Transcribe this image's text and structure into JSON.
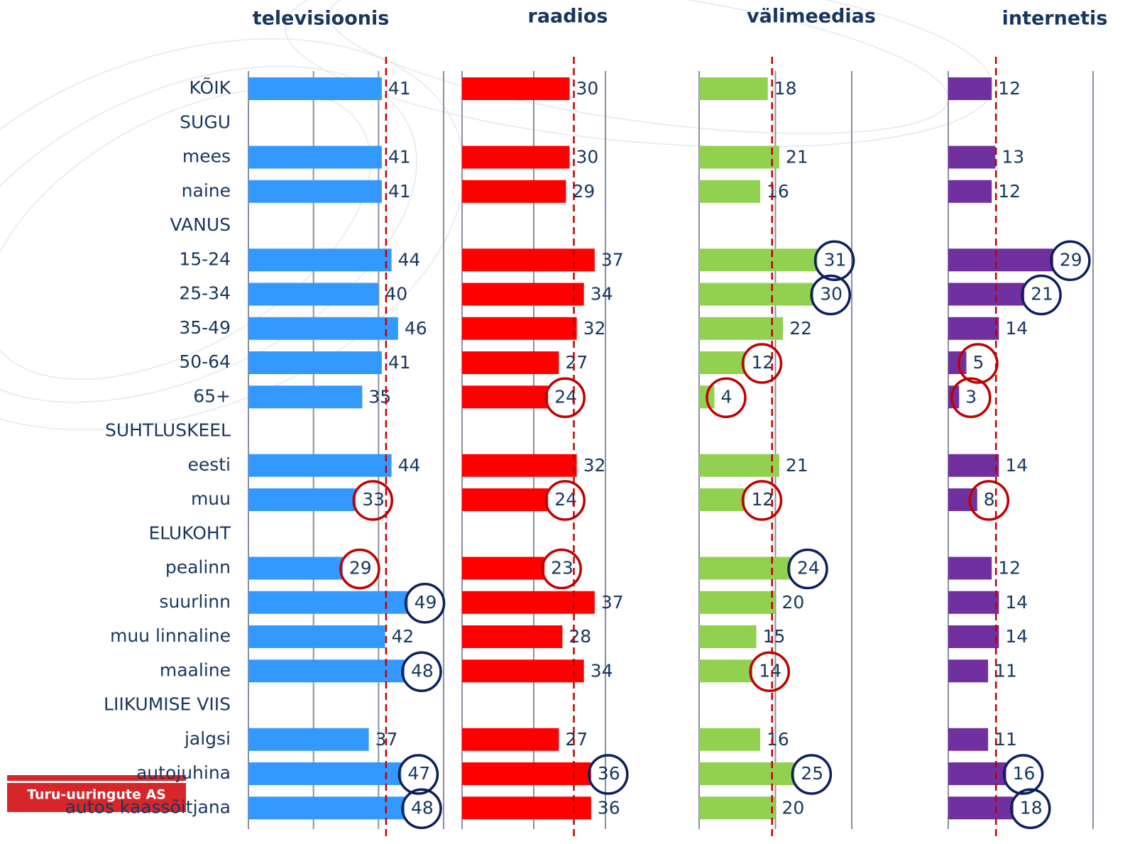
{
  "chart_data": {
    "type": "bar",
    "orientation": "horizontal",
    "categories": [
      "KÕIK",
      "SUGU",
      "mees",
      "naine",
      "VANUS",
      "15-24",
      "25-34",
      "35-49",
      "50-64",
      "65+",
      "SUHTLUSKEEL",
      "eesti",
      "muu",
      "ELUKOHT",
      "pealinn",
      "suurlinn",
      "muu linnaline",
      "maaline",
      "LIIKUMISE VIIS",
      "jalgsi",
      "autojuhina",
      "autos kaassõitjana"
    ],
    "series": [
      {
        "name": "televisioonis",
        "color": "#3399ff",
        "xlim": [
          0,
          60
        ],
        "xticks": [
          0,
          20,
          40,
          60
        ],
        "values": [
          41,
          null,
          41,
          41,
          null,
          44,
          40,
          46,
          41,
          35,
          null,
          44,
          33,
          null,
          29,
          49,
          42,
          48,
          null,
          37,
          47,
          48
        ],
        "highlight": [
          null,
          null,
          null,
          null,
          null,
          null,
          null,
          null,
          null,
          null,
          null,
          null,
          "below",
          null,
          "below",
          "above",
          null,
          "above",
          null,
          null,
          "above",
          "above"
        ]
      },
      {
        "name": "raadios",
        "color": "#ff0000",
        "xlim": [
          0,
          40
        ],
        "xticks": [
          0,
          20,
          40
        ],
        "values": [
          30,
          null,
          30,
          29,
          null,
          37,
          34,
          32,
          27,
          24,
          null,
          32,
          24,
          null,
          23,
          37,
          28,
          34,
          null,
          27,
          36,
          36
        ],
        "highlight": [
          null,
          null,
          null,
          null,
          null,
          null,
          null,
          null,
          null,
          "below",
          null,
          null,
          "below",
          null,
          "below",
          null,
          null,
          null,
          null,
          null,
          "above",
          null
        ]
      },
      {
        "name": "välimeedias",
        "color": "#92d050",
        "xlim": [
          0,
          40
        ],
        "xticks": [
          0,
          20,
          40
        ],
        "values": [
          18,
          null,
          21,
          16,
          null,
          31,
          30,
          22,
          12,
          4,
          null,
          21,
          12,
          null,
          24,
          20,
          15,
          14,
          null,
          16,
          25,
          20
        ],
        "highlight": [
          null,
          null,
          null,
          null,
          null,
          "above",
          "above",
          null,
          "below",
          "below",
          null,
          null,
          "below",
          null,
          "above",
          null,
          null,
          "below",
          null,
          null,
          "above",
          null
        ]
      },
      {
        "name": "internetis",
        "color": "#7030a0",
        "xlim": [
          0,
          40
        ],
        "xticks": [
          0,
          40
        ],
        "values": [
          12,
          null,
          13,
          12,
          null,
          29,
          21,
          14,
          5,
          3,
          null,
          14,
          8,
          null,
          12,
          14,
          14,
          11,
          null,
          11,
          16,
          18
        ],
        "highlight": [
          null,
          null,
          null,
          null,
          null,
          "above",
          "above",
          null,
          "below",
          "below",
          null,
          null,
          "below",
          null,
          null,
          null,
          null,
          null,
          null,
          null,
          "above",
          "above"
        ]
      }
    ],
    "logo": "Turu-uuringute AS"
  }
}
